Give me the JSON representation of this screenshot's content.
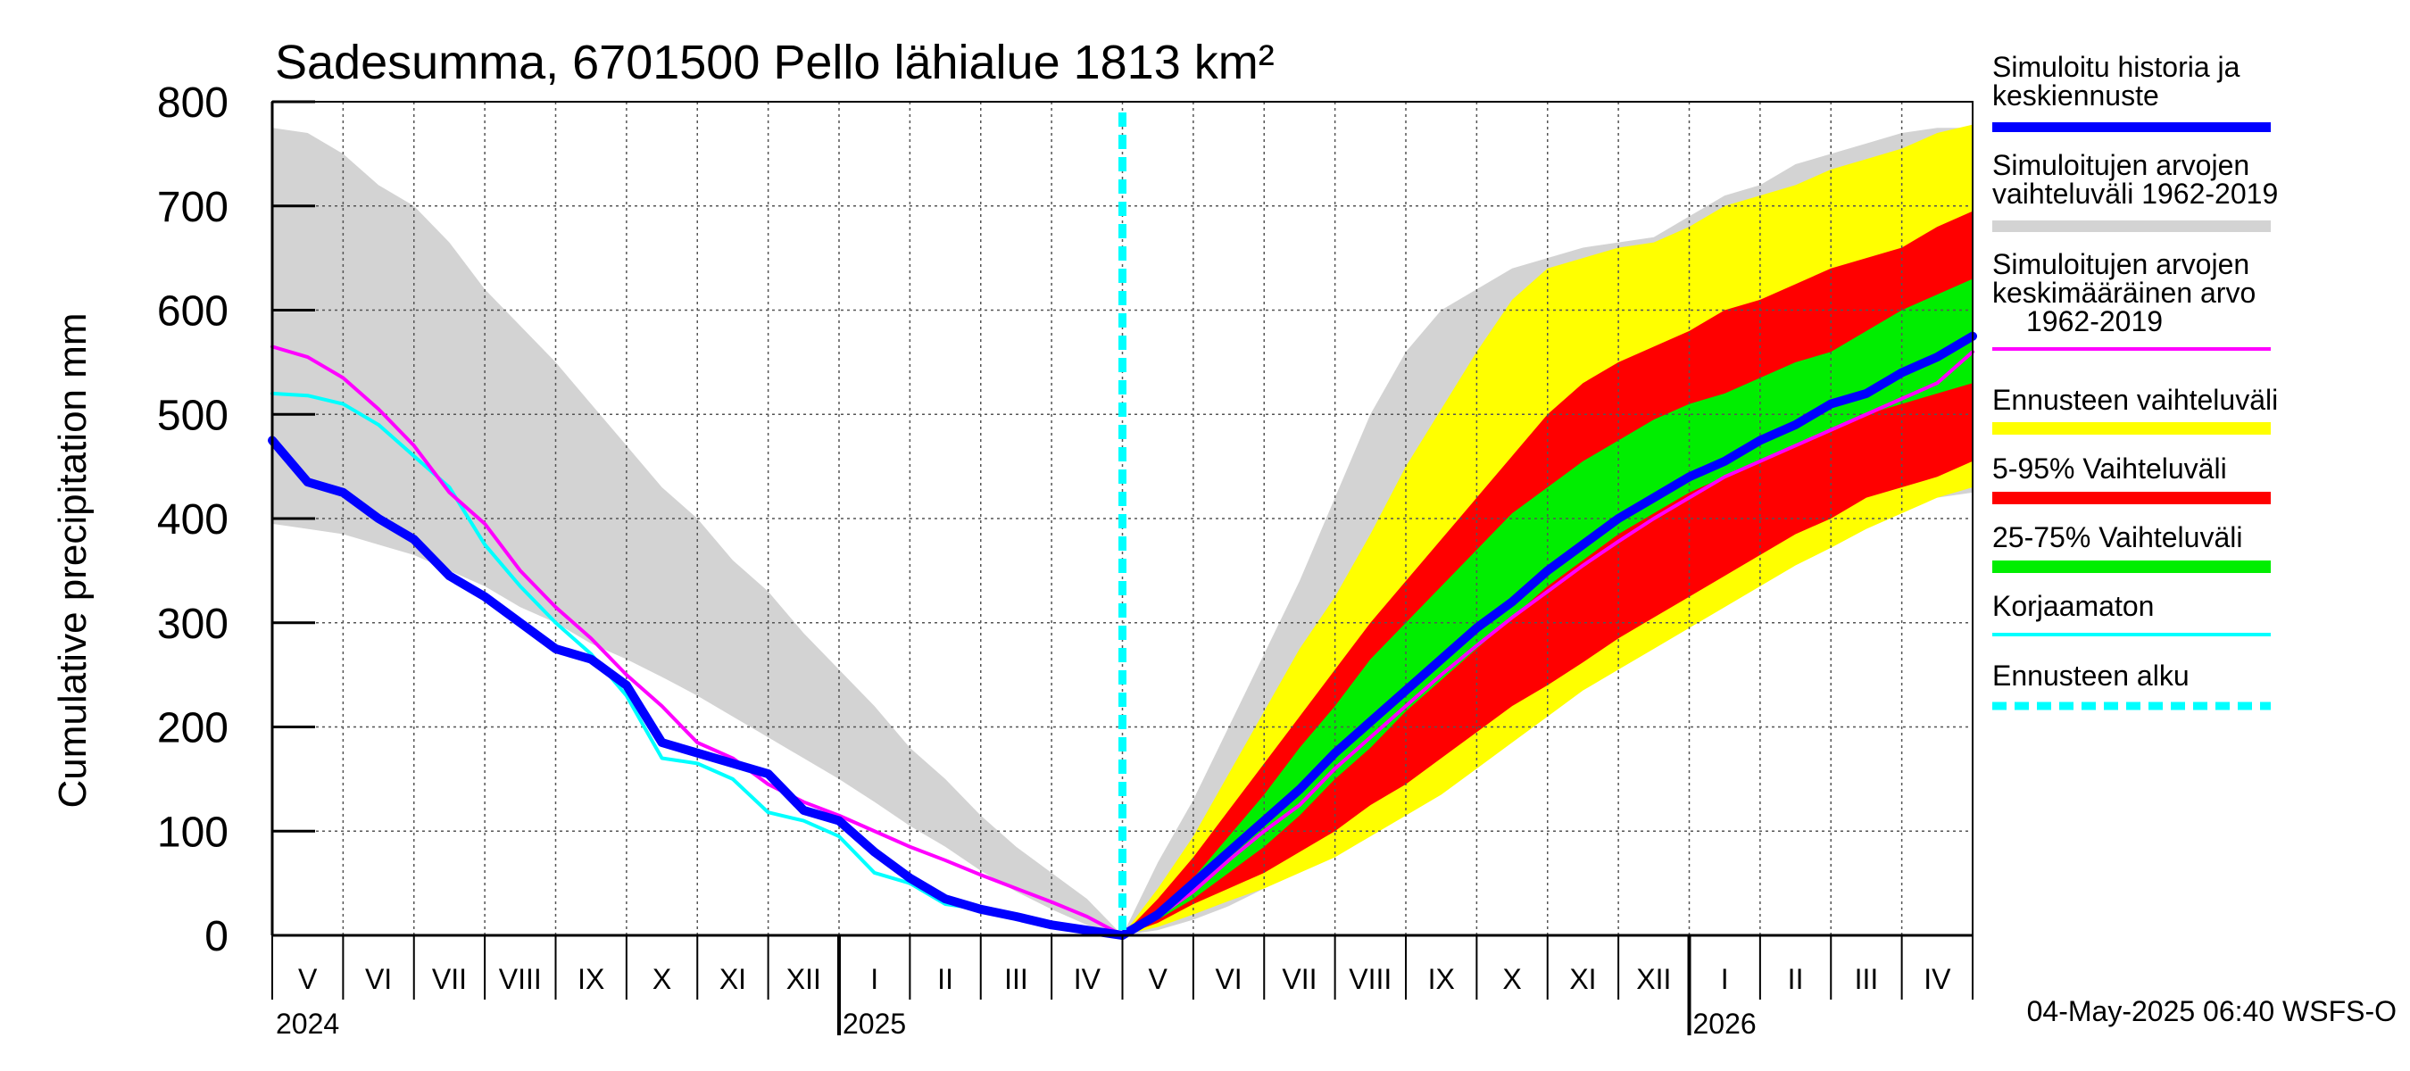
{
  "chart_data": {
    "type": "area",
    "title": "Sadesumma, 6701500 Pello lähialue 1813 km²",
    "ylabel": "Cumulative precipitation   mm",
    "xlabel": "",
    "ylim": [
      0,
      800
    ],
    "yticks": [
      0,
      100,
      200,
      300,
      400,
      500,
      600,
      700,
      800
    ],
    "grid": true,
    "forecast_start_month": 12,
    "x_month_range": [
      0,
      24
    ],
    "month_labels": [
      "V",
      "VI",
      "VII",
      "VIII",
      "IX",
      "X",
      "XI",
      "XII",
      "I",
      "II",
      "III",
      "IV",
      "V",
      "VI",
      "VII",
      "VIII",
      "IX",
      "X",
      "XI",
      "XII",
      "I",
      "II",
      "III",
      "IV"
    ],
    "year_labels": [
      {
        "label": "2024",
        "month_index": 0
      },
      {
        "label": "2025",
        "month_index": 8
      },
      {
        "label": "2026",
        "month_index": 20
      }
    ],
    "x_months": [
      0,
      0.5,
      1,
      1.5,
      2,
      2.5,
      3,
      3.5,
      4,
      4.5,
      5,
      5.5,
      6,
      6.5,
      7,
      7.5,
      8,
      8.5,
      9,
      9.5,
      10,
      10.5,
      11,
      11.5,
      12
    ],
    "x_forecast_months": [
      12,
      12.5,
      13,
      13.5,
      14,
      14.5,
      15,
      15.5,
      16,
      16.5,
      17,
      17.5,
      18,
      18.5,
      19,
      19.5,
      20,
      20.5,
      21,
      21.5,
      22,
      22.5,
      23,
      23.5,
      24
    ],
    "series": [
      {
        "name": "Simuloitujen arvojen vaihteluväli 1962-2019",
        "kind": "band",
        "color": "#d3d3d3",
        "part": "history",
        "upper": [
          775,
          770,
          750,
          720,
          700,
          665,
          620,
          585,
          550,
          510,
          470,
          430,
          400,
          360,
          330,
          290,
          255,
          220,
          180,
          150,
          115,
          85,
          60,
          35,
          0
        ],
        "lower": [
          395,
          390,
          385,
          375,
          365,
          350,
          335,
          315,
          300,
          280,
          265,
          248,
          230,
          210,
          190,
          170,
          150,
          128,
          105,
          85,
          62,
          42,
          25,
          10,
          0
        ]
      },
      {
        "name": "Simuloitujen arvojen vaihteluväli 1962-2019",
        "kind": "band",
        "color": "#d3d3d3",
        "part": "future",
        "upper": [
          0,
          70,
          130,
          200,
          270,
          340,
          420,
          500,
          560,
          600,
          620,
          640,
          650,
          660,
          665,
          670,
          690,
          710,
          720,
          740,
          750,
          760,
          770,
          775,
          775
        ],
        "lower": [
          0,
          5,
          15,
          28,
          45,
          65,
          90,
          115,
          145,
          170,
          195,
          215,
          235,
          255,
          275,
          295,
          315,
          335,
          355,
          370,
          385,
          398,
          410,
          420,
          425
        ]
      },
      {
        "name": "Ennusteen vaihteluväli",
        "kind": "band",
        "color": "#ffff00",
        "upper": [
          0,
          45,
          95,
          155,
          215,
          275,
          325,
          385,
          450,
          505,
          560,
          610,
          640,
          650,
          660,
          665,
          680,
          700,
          710,
          720,
          735,
          745,
          755,
          770,
          778
        ],
        "lower": [
          0,
          8,
          20,
          33,
          45,
          60,
          75,
          95,
          115,
          135,
          160,
          185,
          210,
          235,
          255,
          275,
          295,
          315,
          335,
          355,
          372,
          390,
          405,
          420,
          430
        ]
      },
      {
        "name": "5-95% Vaihteluväli",
        "kind": "band",
        "color": "#ff0000",
        "upper": [
          0,
          35,
          75,
          120,
          165,
          210,
          255,
          300,
          340,
          380,
          420,
          460,
          500,
          530,
          550,
          565,
          580,
          600,
          610,
          625,
          640,
          650,
          660,
          680,
          695
        ],
        "lower": [
          0,
          12,
          30,
          45,
          60,
          80,
          100,
          125,
          145,
          170,
          195,
          220,
          240,
          262,
          285,
          305,
          325,
          345,
          365,
          385,
          400,
          420,
          430,
          440,
          455
        ]
      },
      {
        "name": "25-75% Vaihteluväli",
        "kind": "band",
        "color": "#00ee00",
        "upper": [
          0,
          25,
          55,
          95,
          135,
          180,
          220,
          265,
          300,
          335,
          370,
          405,
          430,
          455,
          475,
          495,
          510,
          520,
          535,
          550,
          560,
          580,
          600,
          615,
          630
        ],
        "lower": [
          0,
          15,
          35,
          60,
          85,
          115,
          150,
          180,
          215,
          245,
          275,
          305,
          335,
          360,
          385,
          405,
          425,
          440,
          455,
          470,
          485,
          500,
          510,
          520,
          530
        ]
      },
      {
        "name": "Korjaamaton",
        "kind": "line",
        "color": "#00ffff",
        "width": 4,
        "part": "history",
        "values": [
          520,
          518,
          510,
          490,
          460,
          430,
          375,
          335,
          300,
          270,
          230,
          170,
          165,
          150,
          118,
          110,
          95,
          60,
          50,
          30,
          25,
          18,
          10,
          5,
          0
        ]
      },
      {
        "name": "Simuloitujen arvojen keskimääräinen arvo 1962-2019",
        "kind": "line",
        "color": "#ff00ff",
        "width": 4,
        "part": "history",
        "values": [
          565,
          555,
          535,
          505,
          470,
          425,
          395,
          350,
          315,
          285,
          250,
          220,
          185,
          170,
          145,
          128,
          115,
          100,
          85,
          72,
          58,
          45,
          32,
          18,
          0
        ]
      },
      {
        "name": "Simuloitujen arvojen keskimääräinen arvo 1962-2019",
        "kind": "line",
        "color": "#ff00ff",
        "width": 4,
        "part": "future",
        "values": [
          0,
          18,
          42,
          72,
          100,
          125,
          160,
          190,
          220,
          250,
          278,
          305,
          330,
          355,
          378,
          400,
          420,
          440,
          455,
          470,
          485,
          500,
          515,
          530,
          560
        ]
      },
      {
        "name": "Simuloitu historia ja keskiennuste",
        "kind": "line",
        "color": "#0000ff",
        "width": 10,
        "part": "history",
        "values": [
          475,
          435,
          425,
          400,
          380,
          345,
          325,
          300,
          275,
          265,
          240,
          185,
          175,
          165,
          155,
          120,
          110,
          80,
          55,
          35,
          25,
          18,
          10,
          5,
          0
        ]
      },
      {
        "name": "Simuloitu historia ja keskiennuste",
        "kind": "line",
        "color": "#0000ff",
        "width": 10,
        "part": "future",
        "values": [
          0,
          20,
          50,
          80,
          110,
          140,
          175,
          205,
          235,
          265,
          295,
          320,
          350,
          375,
          400,
          420,
          440,
          455,
          475,
          490,
          510,
          520,
          540,
          555,
          575
        ]
      }
    ]
  },
  "legend": [
    {
      "label": "Simuloitu historia ja keskiennuste",
      "color": "#0000ff",
      "style": "line"
    },
    {
      "label": "Simuloitujen arvojen vaihteluväli 1962-2019",
      "color": "#d3d3d3",
      "style": "band"
    },
    {
      "label": "Simuloitujen arvojen keskimääräinen arvo 1962-2019",
      "color": "#ff00ff",
      "style": "thin"
    },
    {
      "label": "Ennusteen vaihteluväli",
      "color": "#ffff00",
      "style": "band"
    },
    {
      "label": "5-95% Vaihteluväli",
      "color": "#ff0000",
      "style": "band"
    },
    {
      "label": "25-75% Vaihteluväli",
      "color": "#00ee00",
      "style": "band"
    },
    {
      "label": "Korjaamaton",
      "color": "#00ffff",
      "style": "thin"
    },
    {
      "label": "Ennusteen alku",
      "color": "#00ffff",
      "style": "dashed"
    }
  ],
  "legend_lines": {
    "l0a": "Simuloitu historia ja",
    "l0b": "keskiennuste",
    "l1a": "Simuloitujen arvojen",
    "l1b": "vaihteluväli 1962-2019",
    "l2a": "Simuloitujen arvojen",
    "l2b": "keskimääräinen arvo",
    "l2c": "1962-2019",
    "l3": "Ennusteen vaihteluväli",
    "l4": "5-95% Vaihteluväli",
    "l5": "25-75% Vaihteluväli",
    "l6": "Korjaamaton",
    "l7": "Ennusteen alku"
  },
  "timestamp": "04-May-2025 06:40 WSFS-O"
}
